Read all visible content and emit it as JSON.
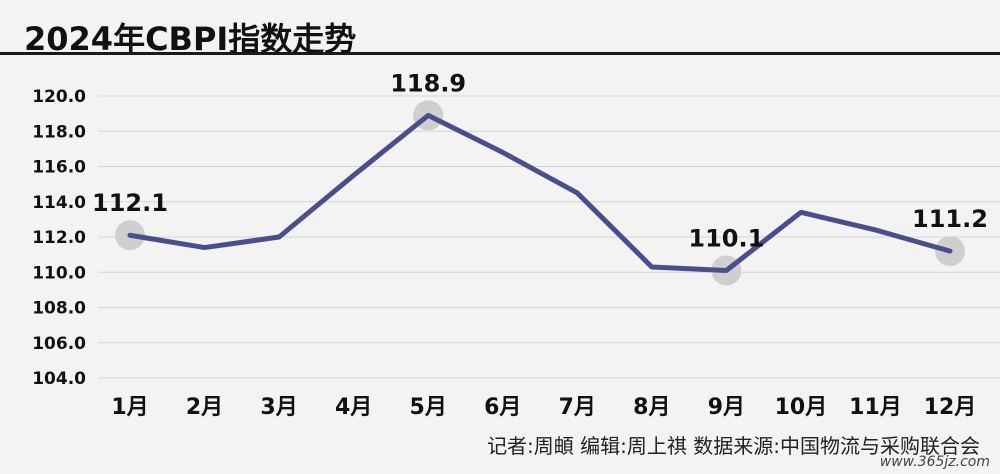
{
  "title": "2024年CBPI指数走势",
  "credit": "记者:周頔  编辑:周上祺  数据来源:中国物流与采购联合会",
  "watermark": "www.365jz.com",
  "colors": {
    "line": "#4a4f8c",
    "grid": "#d4d4d4",
    "highlight": "#cfcfcf",
    "background": "#f3f3f3"
  },
  "chart_data": {
    "type": "line",
    "title": "2024年CBPI指数走势",
    "categories": [
      "1月",
      "2月",
      "3月",
      "4月",
      "5月",
      "6月",
      "7月",
      "8月",
      "9月",
      "10月",
      "11月",
      "12月"
    ],
    "series": [
      {
        "values": [
          112.1,
          111.4,
          112.0,
          115.5,
          118.9,
          116.8,
          114.5,
          110.3,
          110.1,
          113.4,
          112.4,
          111.2
        ]
      }
    ],
    "ylim": [
      104.0,
      120.0
    ],
    "yticks": [
      "104.0",
      "106.0",
      "108.0",
      "110.0",
      "112.0",
      "114.0",
      "116.0",
      "118.0",
      "120.0"
    ],
    "grid": true,
    "highlighted": [
      {
        "index": 0,
        "label": "112.1"
      },
      {
        "index": 4,
        "label": "118.9"
      },
      {
        "index": 8,
        "label": "110.1"
      },
      {
        "index": 11,
        "label": "111.2"
      }
    ]
  }
}
